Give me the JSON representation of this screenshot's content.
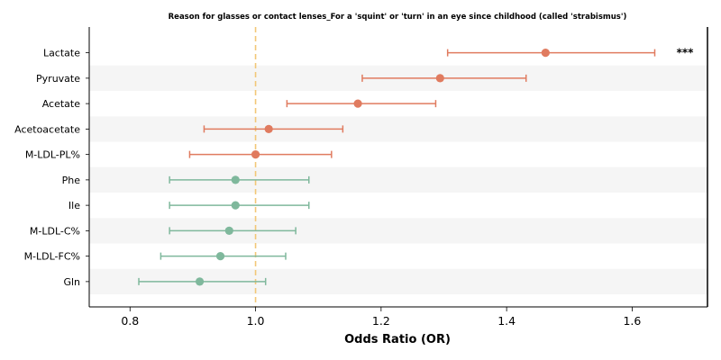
{
  "chart_data": {
    "type": "forest",
    "title": "Reason for glasses or contact lenses_For a 'squint' or 'turn' in an eye since childhood (called 'strabismus')",
    "xlabel": "Odds Ratio (OR)",
    "ylabel": "",
    "xlim": [
      0.735,
      1.72
    ],
    "xticks": [
      "0.8",
      "1.0",
      "1.2",
      "1.4",
      "1.6"
    ],
    "reference_line": 1.0,
    "grid": false,
    "colors": {
      "positive": "#e07b5f",
      "negative": "#7fb89c",
      "reference": "#f2c777",
      "band": "#f5f5f5"
    },
    "rows": [
      {
        "label": "Lactate",
        "or": 1.462,
        "lo": 1.306,
        "hi": 1.636,
        "group": "positive",
        "annotation": "***"
      },
      {
        "label": "Pyruvate",
        "or": 1.294,
        "lo": 1.17,
        "hi": 1.431,
        "group": "positive",
        "annotation": ""
      },
      {
        "label": "Acetate",
        "or": 1.163,
        "lo": 1.05,
        "hi": 1.287,
        "group": "positive",
        "annotation": ""
      },
      {
        "label": "Acetoacetate",
        "or": 1.021,
        "lo": 0.918,
        "hi": 1.139,
        "group": "positive",
        "annotation": ""
      },
      {
        "label": "M-LDL-PL%",
        "or": 1.0,
        "lo": 0.895,
        "hi": 1.121,
        "group": "positive",
        "annotation": ""
      },
      {
        "label": "Phe",
        "or": 0.968,
        "lo": 0.863,
        "hi": 1.085,
        "group": "negative",
        "annotation": ""
      },
      {
        "label": "Ile",
        "or": 0.968,
        "lo": 0.863,
        "hi": 1.085,
        "group": "negative",
        "annotation": ""
      },
      {
        "label": "M-LDL-C%",
        "or": 0.958,
        "lo": 0.863,
        "hi": 1.064,
        "group": "negative",
        "annotation": ""
      },
      {
        "label": "M-LDL-FC%",
        "or": 0.944,
        "lo": 0.849,
        "hi": 1.048,
        "group": "negative",
        "annotation": ""
      },
      {
        "label": "Gln",
        "or": 0.911,
        "lo": 0.814,
        "hi": 1.016,
        "group": "negative",
        "annotation": ""
      }
    ]
  }
}
